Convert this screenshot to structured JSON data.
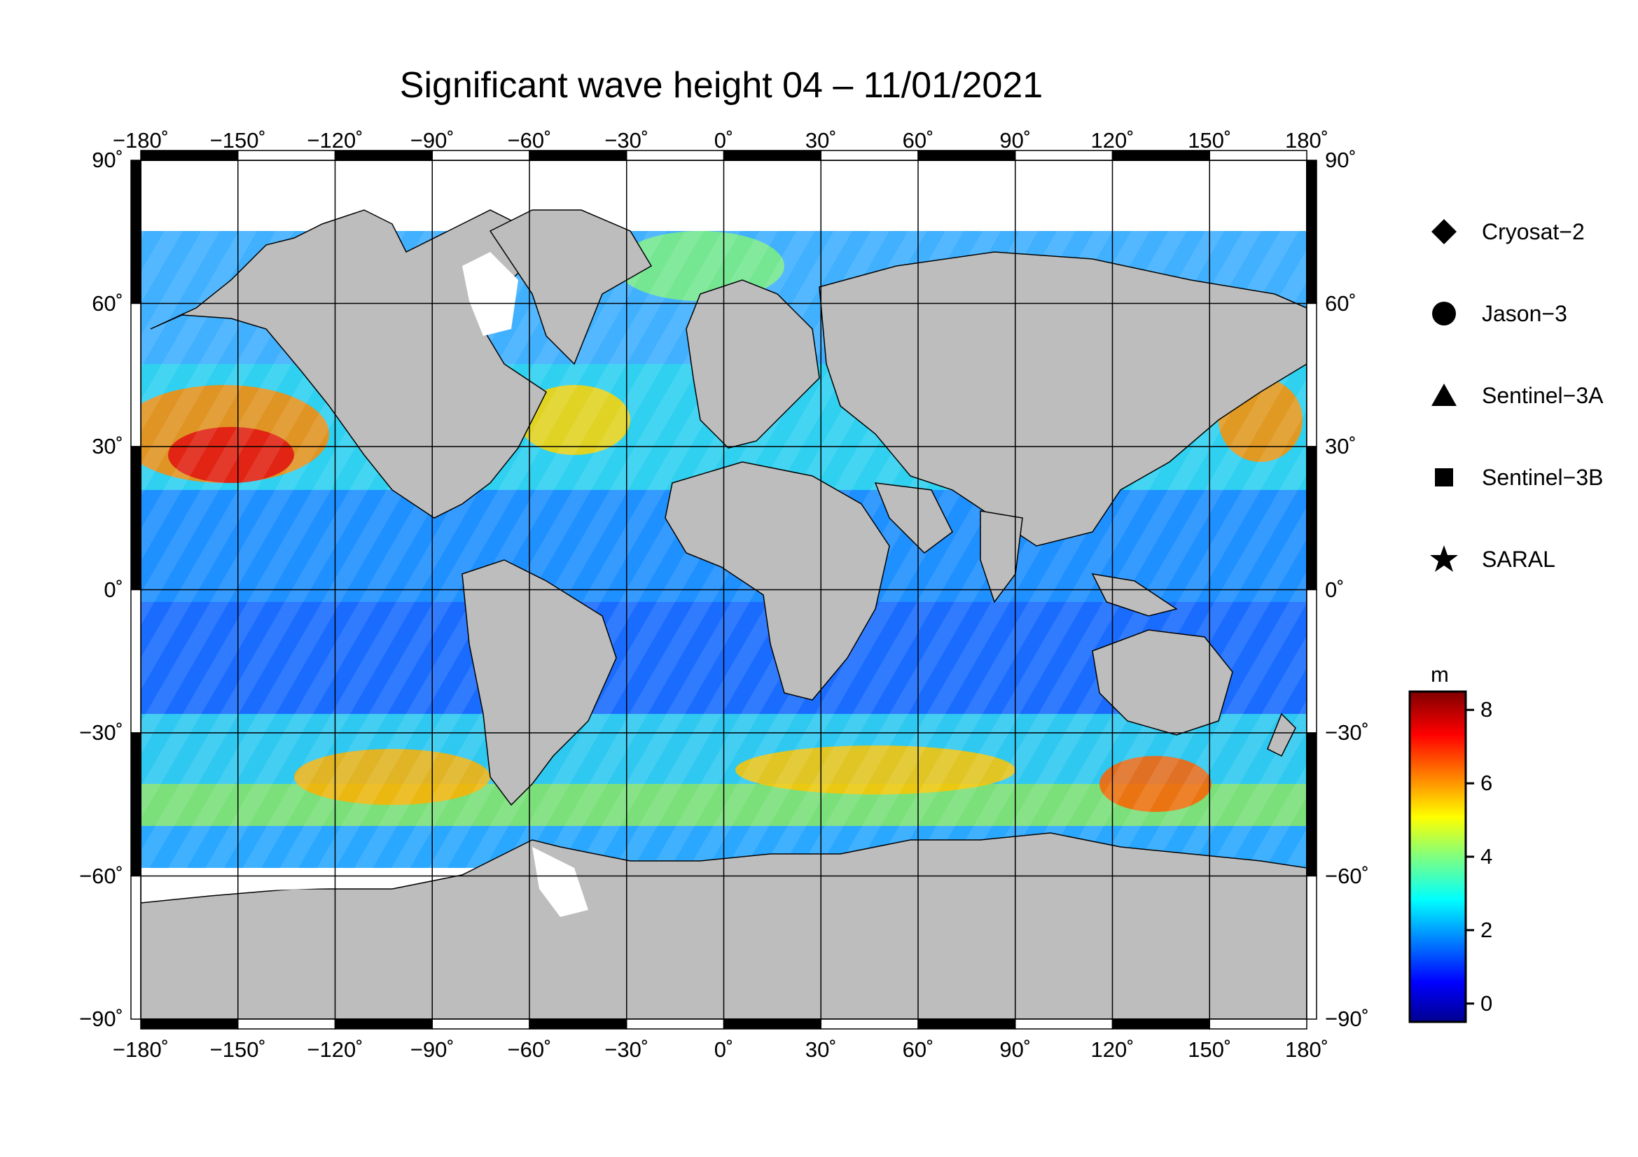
{
  "title": "Significant wave height 04 – 11/01/2021",
  "axes": {
    "lon_ticks": [
      "−180˚",
      "−150˚",
      "−120˚",
      "−90˚",
      "−60˚",
      "−30˚",
      "0˚",
      "30˚",
      "60˚",
      "90˚",
      "120˚",
      "150˚",
      "180˚"
    ],
    "lat_ticks": [
      "90˚",
      "60˚",
      "30˚",
      "0˚",
      "−30˚",
      "−60˚",
      "−90˚"
    ],
    "lon_values": [
      -180,
      -150,
      -120,
      -90,
      -60,
      -30,
      0,
      30,
      60,
      90,
      120,
      150,
      180
    ],
    "lat_values": [
      90,
      60,
      30,
      0,
      -30,
      -60,
      -90
    ]
  },
  "legend": {
    "items": [
      {
        "label": "Cryosat−2",
        "symbol": "diamond"
      },
      {
        "label": "Jason−3",
        "symbol": "circle"
      },
      {
        "label": "Sentinel−3A",
        "symbol": "triangle"
      },
      {
        "label": "Sentinel−3B",
        "symbol": "square"
      },
      {
        "label": "SARAL",
        "symbol": "star"
      }
    ]
  },
  "colorbar": {
    "unit": "m",
    "ticks": [
      "8",
      "6",
      "4",
      "2",
      "0"
    ],
    "tick_values": [
      8,
      6,
      4,
      2,
      0
    ],
    "range": [
      -0.5,
      8.5
    ],
    "colormap": "jet"
  },
  "colors": {
    "land": "#bdbdbd",
    "ice": "#ffffff",
    "grid": "#000000"
  }
}
